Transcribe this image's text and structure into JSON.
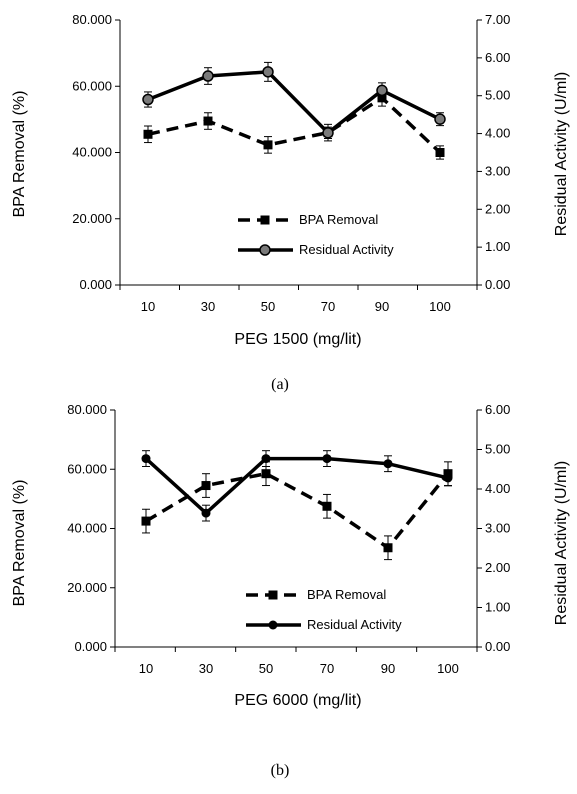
{
  "chart_data": [
    {
      "type": "line",
      "caption": "(a)",
      "xlabel": "PEG 1500 (mg/lit)",
      "ylabel": "BPA Removal (%)",
      "y2label": "Residual Activity (U/ml)",
      "categories": [
        "10",
        "30",
        "50",
        "70",
        "90",
        "100"
      ],
      "ylim": [
        0,
        80
      ],
      "y2lim": [
        0,
        7
      ],
      "yticks": [
        "0.000",
        "20.000",
        "40.000",
        "60.000",
        "80.000"
      ],
      "y2ticks": [
        "0.00",
        "1.00",
        "2.00",
        "3.00",
        "4.00",
        "5.00",
        "6.00",
        "7.00"
      ],
      "grid": false,
      "legend_position": "bottom-right",
      "series": [
        {
          "name": "BPA Removal",
          "axis": "left",
          "style": "dashed",
          "marker": "square",
          "color": "#000000",
          "values": [
            45.5,
            49.5,
            42.3,
            46.0,
            56.5,
            40.0
          ],
          "errors": [
            2.5,
            2.5,
            2.5,
            2.5,
            2.5,
            2.0
          ]
        },
        {
          "name": "Residual Activity",
          "axis": "right",
          "style": "solid",
          "marker": "circle-gray",
          "color": "#000000",
          "values": [
            4.9,
            5.52,
            5.63,
            4.02,
            5.14,
            4.38
          ],
          "errors": [
            0.2,
            0.22,
            0.25,
            0.15,
            0.2,
            0.17
          ]
        }
      ]
    },
    {
      "type": "line",
      "caption": "(b)",
      "xlabel": "PEG 6000 (mg/lit)",
      "ylabel": "BPA Removal (%)",
      "y2label": "Residual Activity (U/ml)",
      "categories": [
        "10",
        "30",
        "50",
        "70",
        "90",
        "100"
      ],
      "ylim": [
        0,
        80
      ],
      "y2lim": [
        0,
        6
      ],
      "yticks": [
        "0.000",
        "20.000",
        "40.000",
        "60.000",
        "80.000"
      ],
      "y2ticks": [
        "0.00",
        "1.00",
        "2.00",
        "3.00",
        "4.00",
        "5.00",
        "6.00"
      ],
      "grid": false,
      "legend_position": "bottom-right",
      "series": [
        {
          "name": "BPA Removal",
          "axis": "left",
          "style": "dashed",
          "marker": "square",
          "color": "#000000",
          "values": [
            42.5,
            54.5,
            58.5,
            47.5,
            33.5,
            58.5
          ],
          "errors": [
            4.0,
            4.0,
            4.0,
            4.0,
            4.0,
            4.0
          ]
        },
        {
          "name": "Residual Activity",
          "axis": "right",
          "style": "solid",
          "marker": "circle",
          "color": "#000000",
          "values": [
            4.77,
            3.39,
            4.77,
            4.77,
            4.64,
            4.28
          ],
          "errors": [
            0.2,
            0.2,
            0.2,
            0.2,
            0.2,
            0.2
          ]
        }
      ]
    }
  ]
}
